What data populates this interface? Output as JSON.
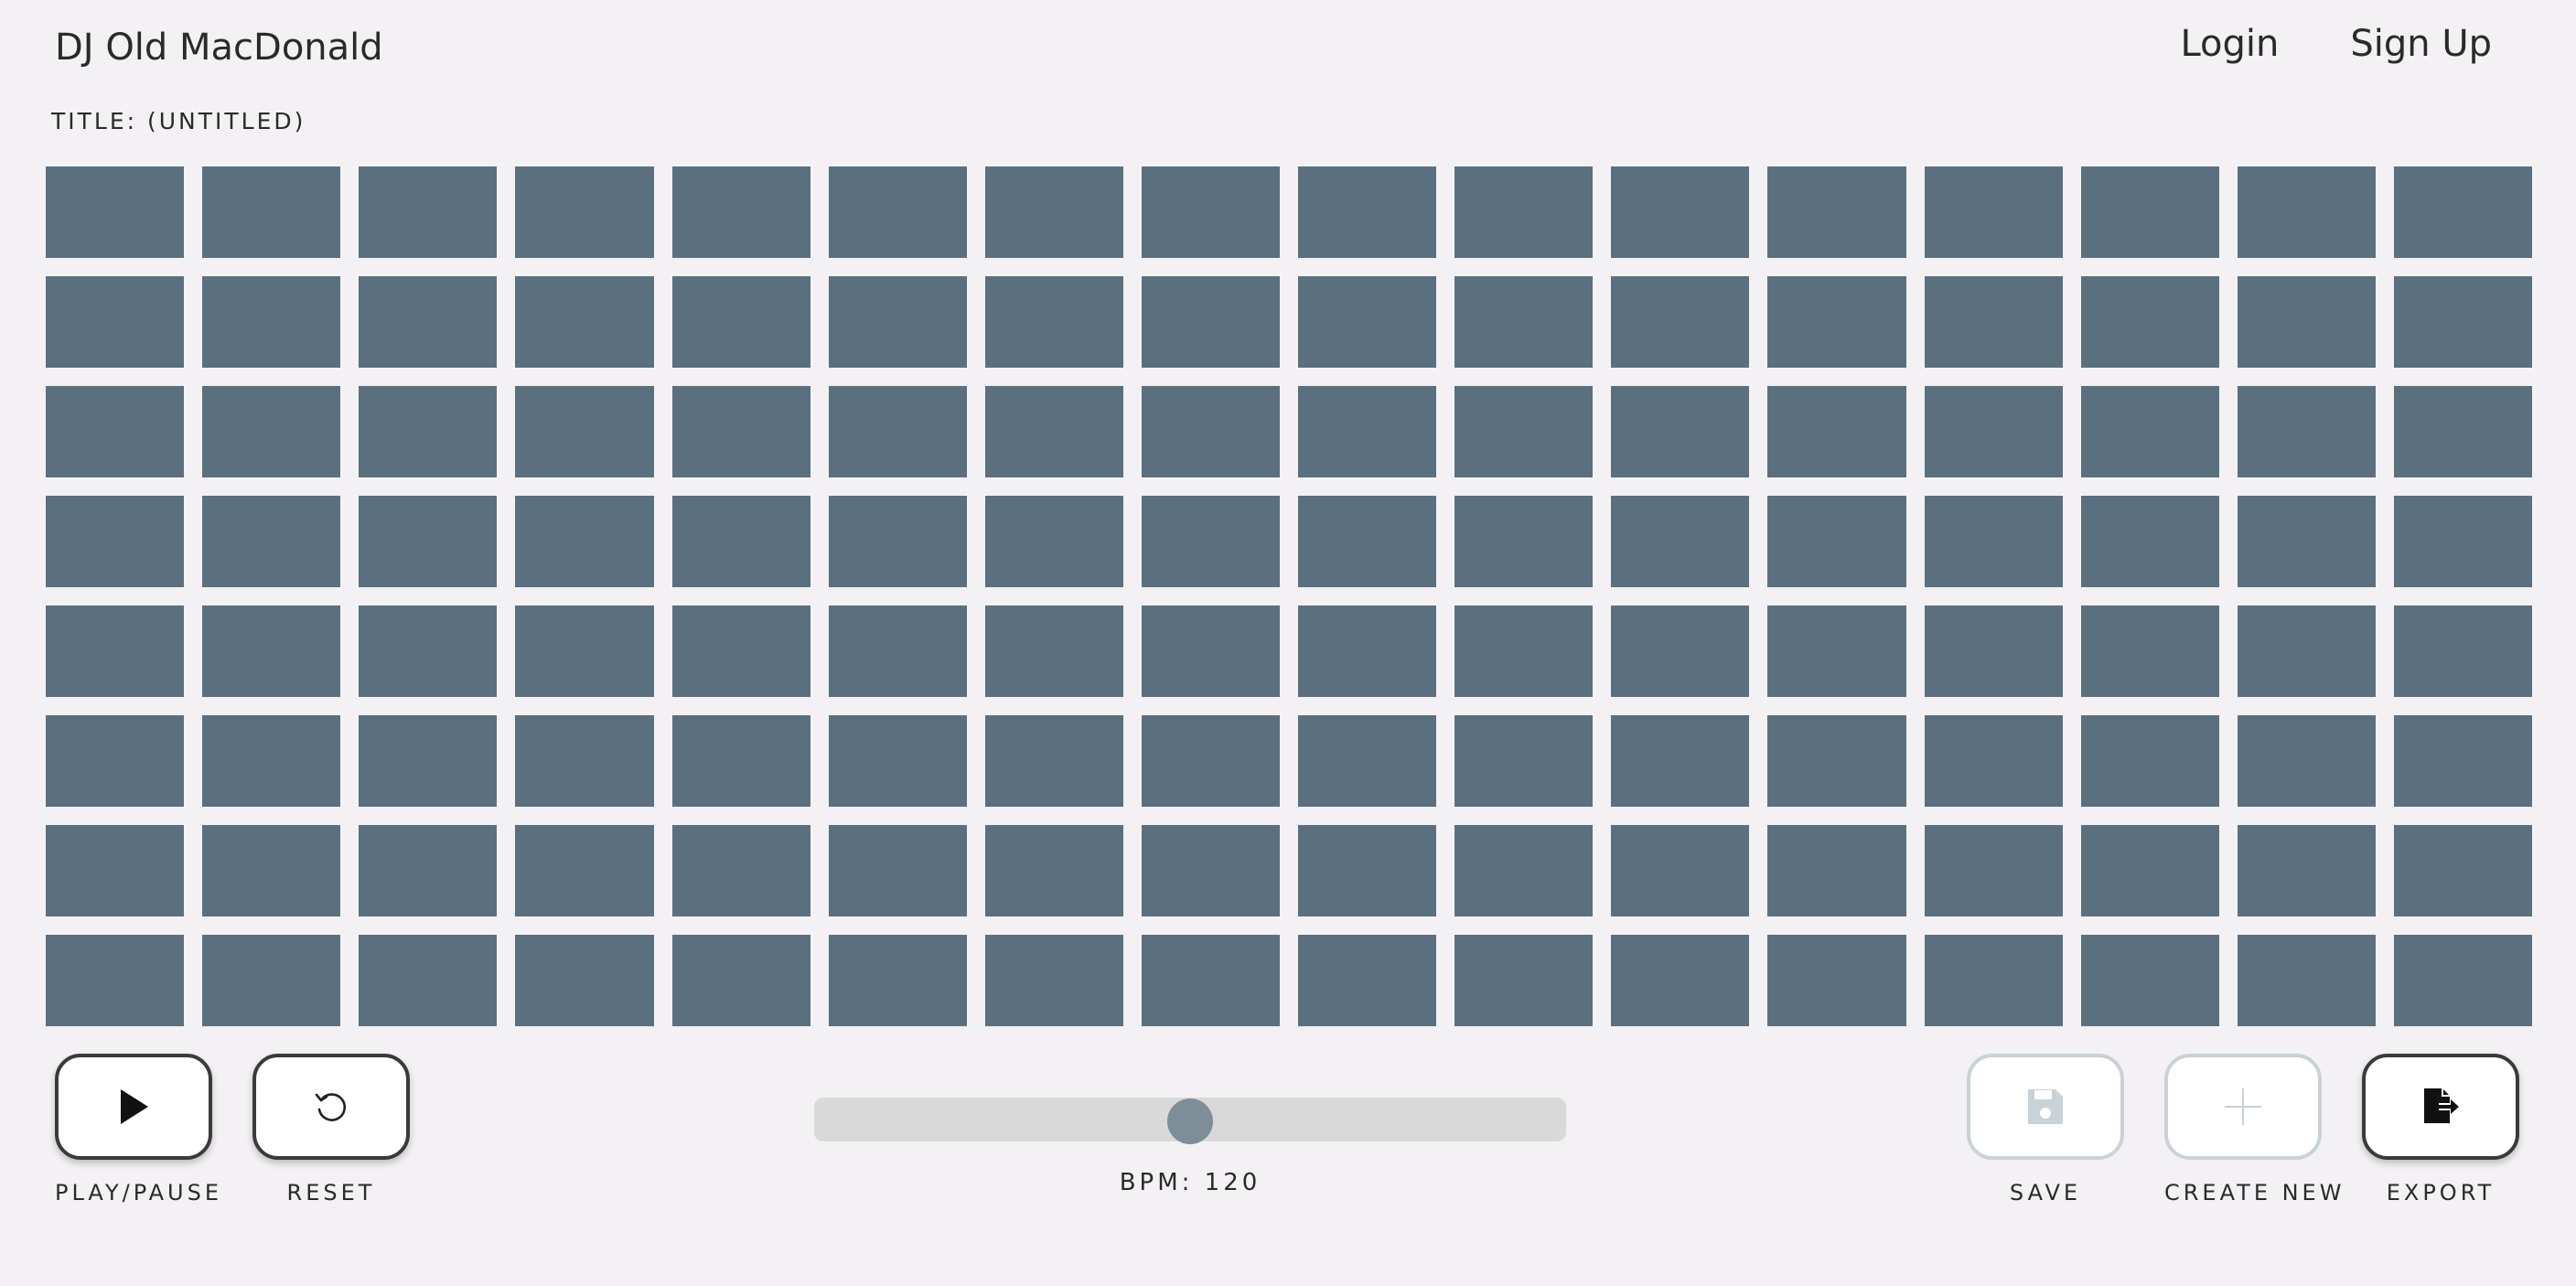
{
  "header": {
    "app_title": "DJ Old MacDonald",
    "nav": {
      "login": "Login",
      "signup": "Sign Up"
    }
  },
  "song": {
    "title_label": "TITLE: (UNTITLED)"
  },
  "sequencer": {
    "rows": 8,
    "columns": 16,
    "pad_color": "#5a707f",
    "active_pads": []
  },
  "transport": {
    "play_pause_label": "PLAY/PAUSE",
    "reset_label": "RESET"
  },
  "tempo": {
    "label_prefix": "BPM:",
    "value": "120",
    "fraction": 0.5
  },
  "actions": {
    "save_label": "SAVE",
    "create_new_label": "CREATE NEW",
    "export_label": "EXPORT",
    "save_enabled": false,
    "create_new_enabled": false,
    "export_enabled": true
  },
  "icons": {
    "play": "play-icon",
    "reset": "reset-icon",
    "save": "save-icon",
    "create_new": "plus-icon",
    "export": "export-icon"
  },
  "colors": {
    "background": "#f4f1f5",
    "pad": "#5a707f",
    "slider_track": "#d9d9d9",
    "slider_thumb": "#7d8e98",
    "disabled_border": "#c9d2d6"
  }
}
